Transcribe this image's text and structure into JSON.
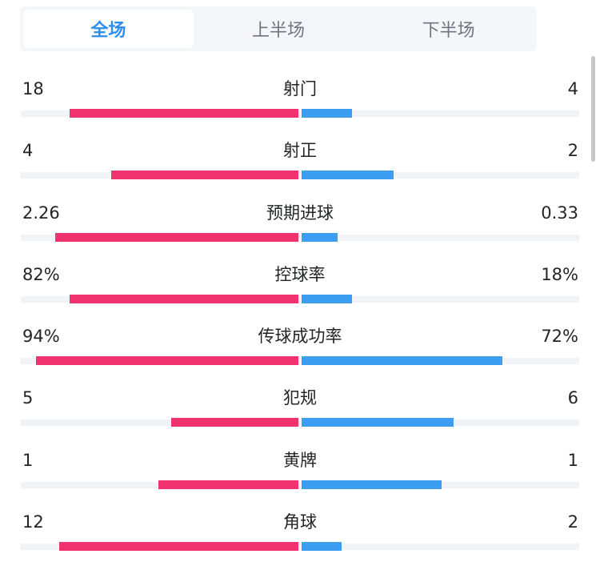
{
  "tabs": [
    {
      "label": "全场",
      "active": true
    },
    {
      "label": "上半场",
      "active": false
    },
    {
      "label": "下半场",
      "active": false
    }
  ],
  "colors": {
    "home_bar": "#f0336e",
    "away_bar": "#3d9df0",
    "active_tab": "#2d8df0"
  },
  "stats": [
    {
      "label": "射门",
      "home": "18",
      "away": "4",
      "home_share": 0.82,
      "away_share": 0.18
    },
    {
      "label": "射正",
      "home": "4",
      "away": "2",
      "home_share": 0.67,
      "away_share": 0.33
    },
    {
      "label": "预期进球",
      "home": "2.26",
      "away": "0.33",
      "home_share": 0.87,
      "away_share": 0.13
    },
    {
      "label": "控球率",
      "home": "82%",
      "away": "18%",
      "home_share": 0.82,
      "away_share": 0.18
    },
    {
      "label": "传球成功率",
      "home": "94%",
      "away": "72%",
      "home_share": 0.94,
      "away_share": 0.72
    },
    {
      "label": "犯规",
      "home": "5",
      "away": "6",
      "home_share": 0.455,
      "away_share": 0.545
    },
    {
      "label": "黄牌",
      "home": "1",
      "away": "1",
      "home_share": 0.5,
      "away_share": 0.5
    },
    {
      "label": "角球",
      "home": "12",
      "away": "2",
      "home_share": 0.857,
      "away_share": 0.143
    }
  ]
}
